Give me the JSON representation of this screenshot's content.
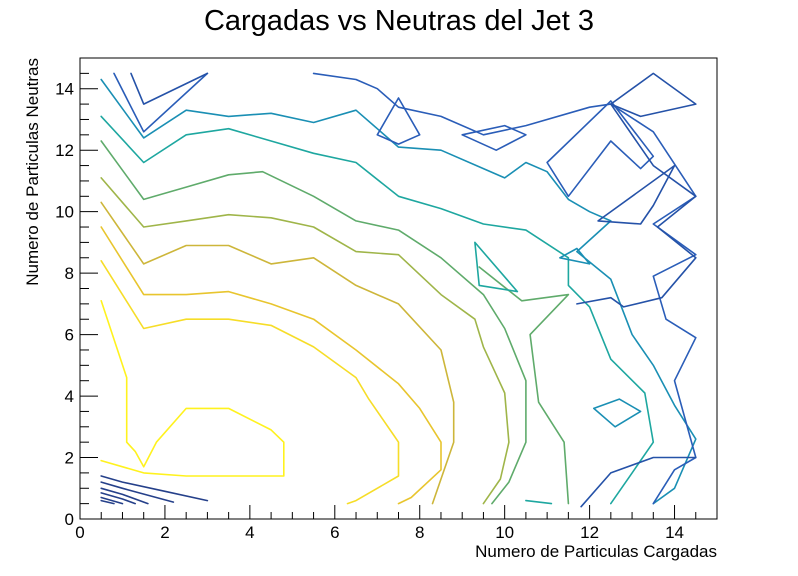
{
  "chart_data": {
    "type": "contour",
    "title": "Cargadas vs Neutras del Jet 3",
    "xlabel": "Numero de Particulas Cargadas",
    "ylabel": "Numero de Particulas Neutras",
    "xlim": [
      0,
      15
    ],
    "ylim": [
      0,
      15
    ],
    "x_ticks": [
      0,
      2,
      4,
      6,
      8,
      10,
      12,
      14
    ],
    "y_ticks": [
      0,
      2,
      4,
      6,
      8,
      10,
      12,
      14
    ],
    "grid": false,
    "legend": "none",
    "colormap": "kBird",
    "contours": [
      {
        "color": "#fff21e",
        "polylines": [
          [
            [
              0.5,
              7.1
            ],
            [
              1.1,
              4.6
            ],
            [
              1.1,
              2.5
            ],
            [
              1.3,
              2.2
            ],
            [
              1.5,
              1.7
            ],
            [
              1.8,
              2.5
            ],
            [
              2.5,
              3.6
            ],
            [
              3.5,
              3.6
            ],
            [
              4.5,
              2.9
            ],
            [
              4.8,
              2.5
            ],
            [
              4.8,
              1.4
            ],
            [
              3.5,
              1.4
            ],
            [
              2.5,
              1.4
            ],
            [
              1.5,
              1.5
            ],
            [
              0.5,
              1.9
            ]
          ]
        ]
      },
      {
        "color": "#f6dd28",
        "polylines": [
          [
            [
              0.5,
              8.4
            ],
            [
              1.5,
              6.2
            ],
            [
              2.5,
              6.5
            ],
            [
              3.5,
              6.5
            ],
            [
              4.5,
              6.3
            ],
            [
              5.5,
              5.6
            ],
            [
              6.5,
              4.6
            ],
            [
              6.8,
              3.9
            ],
            [
              7.4,
              2.7
            ],
            [
              7.5,
              2.5
            ],
            [
              7.5,
              1.4
            ],
            [
              6.5,
              0.6
            ],
            [
              6.3,
              0.5
            ]
          ]
        ]
      },
      {
        "color": "#e8c52e",
        "polylines": [
          [
            [
              0.5,
              9.5
            ],
            [
              1.5,
              7.3
            ],
            [
              2.5,
              7.3
            ],
            [
              3.5,
              7.4
            ],
            [
              4.5,
              7.0
            ],
            [
              5.5,
              6.5
            ],
            [
              6.5,
              5.5
            ],
            [
              7.5,
              4.4
            ],
            [
              8.0,
              3.6
            ],
            [
              8.5,
              2.5
            ],
            [
              8.5,
              1.6
            ],
            [
              7.8,
              0.7
            ],
            [
              7.5,
              0.5
            ]
          ]
        ]
      },
      {
        "color": "#cdb63a",
        "polylines": [
          [
            [
              0.5,
              10.3
            ],
            [
              1.5,
              8.3
            ],
            [
              2.5,
              8.9
            ],
            [
              3.5,
              8.9
            ],
            [
              4.5,
              8.3
            ],
            [
              5.5,
              8.5
            ],
            [
              6.5,
              7.6
            ],
            [
              7.5,
              7.0
            ],
            [
              8.5,
              5.5
            ],
            [
              8.8,
              3.8
            ],
            [
              8.8,
              2.5
            ],
            [
              8.5,
              1.3
            ],
            [
              8.3,
              0.5
            ]
          ]
        ]
      },
      {
        "color": "#9fb549",
        "polylines": [
          [
            [
              0.5,
              11.1
            ],
            [
              1.5,
              9.5
            ],
            [
              2.5,
              9.7
            ],
            [
              3.5,
              9.9
            ],
            [
              4.5,
              9.8
            ],
            [
              5.5,
              9.5
            ],
            [
              6.5,
              8.7
            ],
            [
              7.5,
              8.6
            ],
            [
              8.5,
              7.3
            ],
            [
              9.3,
              6.5
            ],
            [
              9.5,
              5.6
            ],
            [
              10.0,
              4.1
            ],
            [
              10.1,
              2.5
            ],
            [
              9.9,
              1.3
            ],
            [
              9.5,
              0.5
            ]
          ]
        ]
      },
      {
        "color": "#5fab6b",
        "polylines": [
          [
            [
              0.5,
              12.3
            ],
            [
              1.5,
              10.4
            ],
            [
              2.5,
              10.8
            ],
            [
              3.5,
              11.2
            ],
            [
              4.3,
              11.3
            ],
            [
              5.5,
              10.5
            ],
            [
              6.5,
              9.7
            ],
            [
              7.5,
              9.4
            ],
            [
              8.5,
              8.5
            ],
            [
              9.5,
              7.3
            ],
            [
              10.0,
              6.2
            ],
            [
              10.5,
              4.5
            ],
            [
              10.5,
              2.5
            ],
            [
              10.1,
              1.2
            ],
            [
              9.7,
              0.5
            ]
          ],
          [
            [
              9.4,
              8.2
            ],
            [
              10.4,
              7.1
            ],
            [
              11.5,
              7.3
            ],
            [
              10.6,
              6.0
            ],
            [
              10.8,
              3.8
            ],
            [
              11.4,
              2.5
            ],
            [
              11.5,
              0.5
            ]
          ]
        ]
      },
      {
        "color": "#1ea7a0",
        "polylines": [
          [
            [
              0.5,
              13.1
            ],
            [
              1.5,
              11.6
            ],
            [
              2.5,
              12.5
            ],
            [
              3.5,
              12.7
            ],
            [
              4.5,
              12.3
            ],
            [
              5.5,
              11.9
            ],
            [
              6.5,
              11.6
            ],
            [
              7.5,
              10.5
            ],
            [
              8.5,
              10.1
            ],
            [
              9.5,
              9.6
            ],
            [
              10.5,
              9.4
            ],
            [
              11.5,
              8.5
            ],
            [
              11.5,
              7.6
            ],
            [
              12.0,
              6.9
            ],
            [
              12.5,
              5.2
            ],
            [
              13.3,
              4.1
            ],
            [
              13.5,
              2.5
            ],
            [
              13.0,
              1.5
            ],
            [
              12.5,
              0.5
            ]
          ],
          [
            [
              9.3,
              9.0
            ],
            [
              9.4,
              7.6
            ],
            [
              10.3,
              7.4
            ],
            [
              9.3,
              9.0
            ]
          ],
          [
            [
              10.5,
              0.6
            ],
            [
              11.1,
              0.5
            ]
          ]
        ]
      },
      {
        "color": "#1a8fb4",
        "polylines": [
          [
            [
              0.5,
              14.3
            ],
            [
              1.5,
              12.4
            ],
            [
              2.5,
              13.3
            ],
            [
              3.5,
              13.1
            ],
            [
              4.5,
              13.2
            ],
            [
              5.5,
              12.9
            ],
            [
              6.5,
              13.3
            ],
            [
              7.0,
              12.7
            ],
            [
              7.5,
              12.1
            ],
            [
              8.5,
              12.0
            ],
            [
              9.5,
              11.4
            ],
            [
              10.0,
              11.1
            ],
            [
              10.5,
              11.6
            ],
            [
              11.0,
              11.3
            ],
            [
              11.5,
              10.4
            ],
            [
              12.0,
              10.0
            ],
            [
              12.5,
              9.7
            ],
            [
              11.7,
              8.7
            ],
            [
              12.5,
              7.8
            ],
            [
              13.0,
              6.0
            ],
            [
              13.5,
              5.0
            ],
            [
              14.0,
              3.7
            ],
            [
              14.5,
              2.6
            ],
            [
              14.0,
              1.0
            ],
            [
              13.5,
              0.5
            ]
          ],
          [
            [
              11.3,
              8.5
            ],
            [
              11.7,
              8.8
            ],
            [
              12.0,
              8.3
            ],
            [
              11.3,
              8.5
            ]
          ],
          [
            [
              12.1,
              3.6
            ],
            [
              12.7,
              3.9
            ],
            [
              13.2,
              3.5
            ],
            [
              12.6,
              3.0
            ],
            [
              12.1,
              3.6
            ]
          ]
        ]
      },
      {
        "color": "#2a5db8",
        "polylines": [
          [
            [
              0.8,
              14.5
            ],
            [
              1.5,
              12.6
            ],
            [
              3.0,
              14.5
            ]
          ],
          [
            [
              5.5,
              14.5
            ],
            [
              6.5,
              14.3
            ],
            [
              7.0,
              14.0
            ],
            [
              7.5,
              13.4
            ],
            [
              8.5,
              13.1
            ],
            [
              9.5,
              12.5
            ],
            [
              10.5,
              12.8
            ],
            [
              12.0,
              13.4
            ],
            [
              12.5,
              13.5
            ],
            [
              13.5,
              12.6
            ],
            [
              14.5,
              10.5
            ],
            [
              13.5,
              9.6
            ],
            [
              14.5,
              8.6
            ],
            [
              13.5,
              7.9
            ],
            [
              13.8,
              6.5
            ],
            [
              14.5,
              5.9
            ],
            [
              14.0,
              4.5
            ],
            [
              14.5,
              2.0
            ],
            [
              14.0,
              1.6
            ],
            [
              13.5,
              0.5
            ]
          ],
          [
            [
              7.0,
              12.5
            ],
            [
              7.5,
              13.7
            ],
            [
              8.0,
              12.5
            ],
            [
              7.5,
              12.2
            ],
            [
              7.0,
              12.5
            ]
          ],
          [
            [
              9.0,
              12.5
            ],
            [
              10.0,
              12.8
            ],
            [
              10.5,
              12.5
            ],
            [
              9.8,
              12.0
            ],
            [
              9.0,
              12.5
            ]
          ],
          [
            [
              12.5,
              13.6
            ],
            [
              13.5,
              11.8
            ],
            [
              13.2,
              11.4
            ],
            [
              12.5,
              12.3
            ],
            [
              11.5,
              10.5
            ],
            [
              11.0,
              11.6
            ],
            [
              12.5,
              13.6
            ]
          ]
        ]
      },
      {
        "color": "#2552a8",
        "polylines": [
          [
            [
              1.2,
              14.5
            ],
            [
              1.5,
              13.5
            ],
            [
              3.0,
              14.5
            ]
          ],
          [
            [
              12.5,
              13.5
            ],
            [
              13.5,
              14.5
            ],
            [
              14.5,
              13.5
            ],
            [
              13.2,
              13.1
            ],
            [
              12.5,
              13.5
            ]
          ],
          [
            [
              12.5,
              13.5
            ],
            [
              13.5,
              11.5
            ],
            [
              14.5,
              10.5
            ],
            [
              13.6,
              9.5
            ],
            [
              14.5,
              8.5
            ],
            [
              13.7,
              7.2
            ],
            [
              12.8,
              6.9
            ],
            [
              12.5,
              7.2
            ],
            [
              11.7,
              7.0
            ]
          ],
          [
            [
              12.2,
              9.7
            ],
            [
              13.2,
              9.6
            ],
            [
              13.5,
              10.2
            ],
            [
              14.0,
              11.5
            ],
            [
              12.2,
              9.7
            ]
          ],
          [
            [
              11.8,
              0.4
            ],
            [
              12.5,
              1.5
            ],
            [
              13.5,
              2.0
            ],
            [
              14.5,
              2.0
            ]
          ]
        ]
      },
      {
        "color": "#25408a",
        "polylines": [
          [
            [
              0.5,
              1.4
            ],
            [
              1.0,
              1.2
            ],
            [
              2.0,
              0.9
            ],
            [
              3.0,
              0.6
            ]
          ],
          [
            [
              0.5,
              1.2
            ],
            [
              1.0,
              1.0
            ],
            [
              2.2,
              0.55
            ]
          ],
          [
            [
              0.5,
              1.0
            ],
            [
              1.0,
              0.8
            ],
            [
              1.6,
              0.5
            ]
          ],
          [
            [
              0.5,
              0.85
            ],
            [
              1.0,
              0.65
            ],
            [
              1.3,
              0.5
            ]
          ],
          [
            [
              0.5,
              0.7
            ],
            [
              1.0,
              0.5
            ]
          ],
          [
            [
              0.5,
              0.6
            ],
            [
              0.8,
              0.5
            ]
          ]
        ]
      }
    ]
  }
}
